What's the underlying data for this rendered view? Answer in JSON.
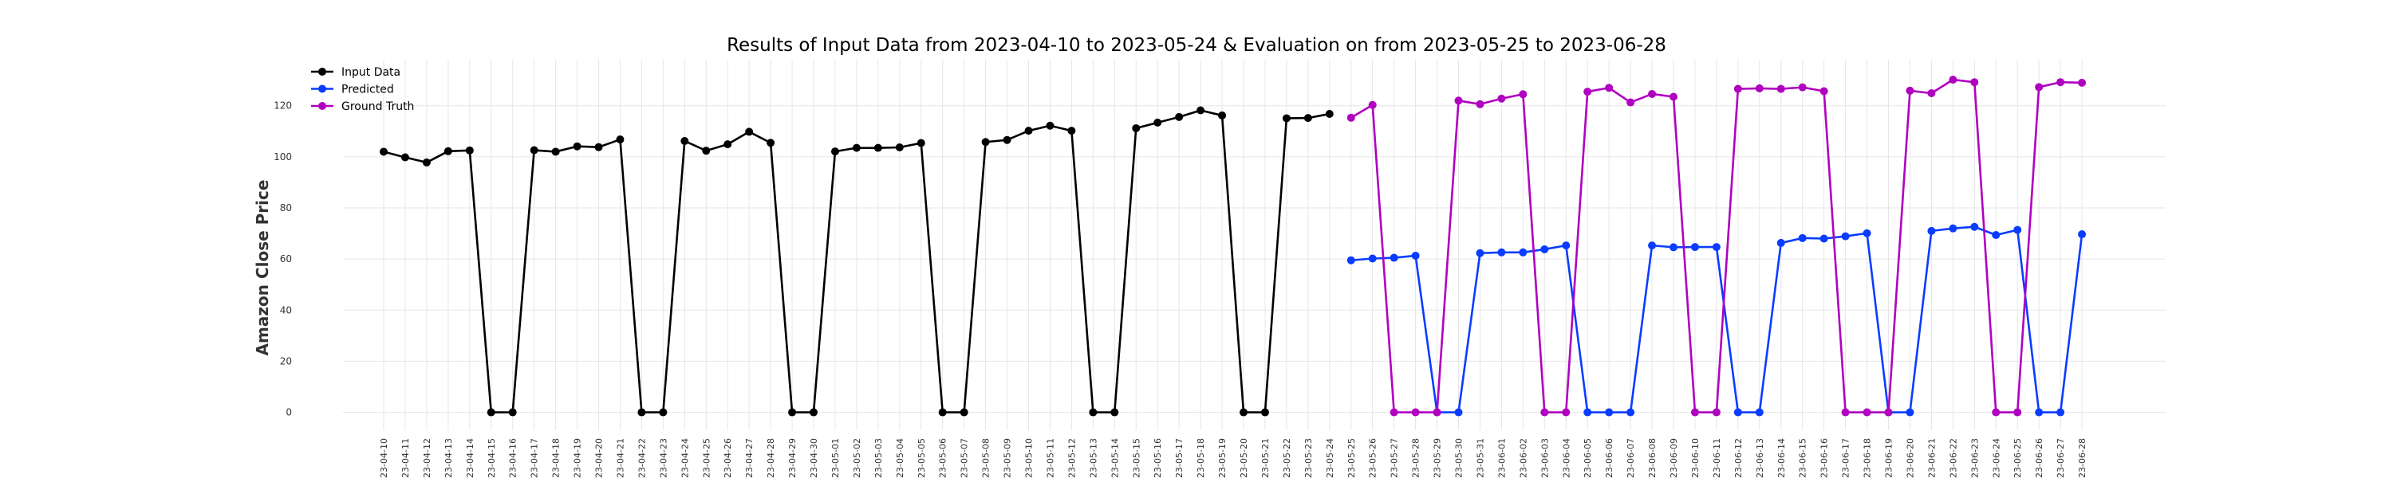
{
  "chart_data": {
    "type": "line",
    "title": "Results of Input Data from 2023-04-10 to 2023-05-24 & Evaluation on from 2023-05-25 to 2023-06-28",
    "xlabel": "",
    "ylabel": "Amazon Close Price",
    "ylim": [
      -7,
      138
    ],
    "yticks": [
      0,
      20,
      40,
      60,
      80,
      100,
      120
    ],
    "grid": true,
    "legend_position": "top-left",
    "x": [
      "2023-04-10",
      "2023-04-11",
      "2023-04-12",
      "2023-04-13",
      "2023-04-14",
      "2023-04-15",
      "2023-04-16",
      "2023-04-17",
      "2023-04-18",
      "2023-04-19",
      "2023-04-20",
      "2023-04-21",
      "2023-04-22",
      "2023-04-23",
      "2023-04-24",
      "2023-04-25",
      "2023-04-26",
      "2023-04-27",
      "2023-04-28",
      "2023-04-29",
      "2023-04-30",
      "2023-05-01",
      "2023-05-02",
      "2023-05-03",
      "2023-05-04",
      "2023-05-05",
      "2023-05-06",
      "2023-05-07",
      "2023-05-08",
      "2023-05-09",
      "2023-05-10",
      "2023-05-11",
      "2023-05-12",
      "2023-05-13",
      "2023-05-14",
      "2023-05-15",
      "2023-05-16",
      "2023-05-17",
      "2023-05-18",
      "2023-05-19",
      "2023-05-20",
      "2023-05-21",
      "2023-05-22",
      "2023-05-23",
      "2023-05-24",
      "2023-05-25",
      "2023-05-26",
      "2023-05-27",
      "2023-05-28",
      "2023-05-29",
      "2023-05-30",
      "2023-05-31",
      "2023-06-01",
      "2023-06-02",
      "2023-06-03",
      "2023-06-04",
      "2023-06-05",
      "2023-06-06",
      "2023-06-07",
      "2023-06-08",
      "2023-06-09",
      "2023-06-10",
      "2023-06-11",
      "2023-06-12",
      "2023-06-13",
      "2023-06-14",
      "2023-06-15",
      "2023-06-16",
      "2023-06-17",
      "2023-06-18",
      "2023-06-19",
      "2023-06-20",
      "2023-06-21",
      "2023-06-22",
      "2023-06-23",
      "2023-06-24",
      "2023-06-25",
      "2023-06-26",
      "2023-06-27",
      "2023-06-28"
    ],
    "tick_labels": [
      "23-04-10",
      "23-04-11",
      "23-04-12",
      "23-04-13",
      "23-04-14",
      "23-04-15",
      "23-04-16",
      "23-04-17",
      "23-04-18",
      "23-04-19",
      "23-04-20",
      "23-04-21",
      "23-04-22",
      "23-04-23",
      "23-04-24",
      "23-04-25",
      "23-04-26",
      "23-04-27",
      "23-04-28",
      "23-04-29",
      "23-04-30",
      "23-05-01",
      "23-05-02",
      "23-05-03",
      "23-05-04",
      "23-05-05",
      "23-05-06",
      "23-05-07",
      "23-05-08",
      "23-05-09",
      "23-05-10",
      "23-05-11",
      "23-05-12",
      "23-05-13",
      "23-05-14",
      "23-05-15",
      "23-05-16",
      "23-05-17",
      "23-05-18",
      "23-05-19",
      "23-05-20",
      "23-05-21",
      "23-05-22",
      "23-05-23",
      "23-05-24",
      "23-05-25",
      "23-05-26",
      "23-05-27",
      "23-05-28",
      "23-05-29",
      "23-05-30",
      "23-05-31",
      "23-06-01",
      "23-06-02",
      "23-06-03",
      "23-06-04",
      "23-06-05",
      "23-06-06",
      "23-06-07",
      "23-06-08",
      "23-06-09",
      "23-06-10",
      "23-06-11",
      "23-06-12",
      "23-06-13",
      "23-06-14",
      "23-06-15",
      "23-06-16",
      "23-06-17",
      "23-06-18",
      "23-06-19",
      "23-06-20",
      "23-06-21",
      "23-06-22",
      "23-06-23",
      "23-06-24",
      "23-06-25",
      "23-06-26",
      "23-06-27",
      "23-06-28"
    ],
    "series": [
      {
        "name": "Input Data",
        "color": "#000000",
        "x": [
          "2023-04-10",
          "2023-04-11",
          "2023-04-12",
          "2023-04-13",
          "2023-04-14",
          "2023-04-15",
          "2023-04-16",
          "2023-04-17",
          "2023-04-18",
          "2023-04-19",
          "2023-04-20",
          "2023-04-21",
          "2023-04-22",
          "2023-04-23",
          "2023-04-24",
          "2023-04-25",
          "2023-04-26",
          "2023-04-27",
          "2023-04-28",
          "2023-04-29",
          "2023-04-30",
          "2023-05-01",
          "2023-05-02",
          "2023-05-03",
          "2023-05-04",
          "2023-05-05",
          "2023-05-06",
          "2023-05-07",
          "2023-05-08",
          "2023-05-09",
          "2023-05-10",
          "2023-05-11",
          "2023-05-12",
          "2023-05-13",
          "2023-05-14",
          "2023-05-15",
          "2023-05-16",
          "2023-05-17",
          "2023-05-18",
          "2023-05-19",
          "2023-05-20",
          "2023-05-21",
          "2023-05-22",
          "2023-05-23",
          "2023-05-24"
        ],
        "values": [
          102,
          99.8,
          97.8,
          102.2,
          102.5,
          0,
          0,
          102.6,
          102,
          104.1,
          103.8,
          106.8,
          0,
          0,
          106.2,
          102.4,
          104.9,
          109.8,
          105.5,
          0,
          0,
          102.1,
          103.5,
          103.5,
          103.7,
          105.4,
          0,
          0,
          105.8,
          106.6,
          110.2,
          112.2,
          110.2,
          0,
          0,
          111.2,
          113.4,
          115.6,
          118.2,
          116.2,
          0,
          0,
          115.1,
          115.2,
          116.8
        ]
      },
      {
        "name": "Predicted",
        "color": "#0a3cff",
        "x": [
          "2023-05-25",
          "2023-05-26",
          "2023-05-27",
          "2023-05-28",
          "2023-05-29",
          "2023-05-30",
          "2023-05-31",
          "2023-06-01",
          "2023-06-02",
          "2023-06-03",
          "2023-06-04",
          "2023-06-05",
          "2023-06-06",
          "2023-06-07",
          "2023-06-08",
          "2023-06-09",
          "2023-06-10",
          "2023-06-11",
          "2023-06-12",
          "2023-06-13",
          "2023-06-14",
          "2023-06-15",
          "2023-06-16",
          "2023-06-17",
          "2023-06-18",
          "2023-06-19",
          "2023-06-20",
          "2023-06-21",
          "2023-06-22",
          "2023-06-23",
          "2023-06-24",
          "2023-06-25",
          "2023-06-26",
          "2023-06-27",
          "2023-06-28"
        ],
        "values": [
          59.5,
          60.2,
          60.5,
          61.3,
          0,
          0,
          62.3,
          62.6,
          62.6,
          63.8,
          65.3,
          0,
          0,
          0,
          65.3,
          64.6,
          64.7,
          64.7,
          0,
          0,
          66.3,
          68.2,
          68,
          68.9,
          70.1,
          0,
          0,
          71,
          72,
          72.6,
          69.4,
          71.4,
          0,
          0,
          69.7
        ]
      },
      {
        "name": "Ground Truth",
        "color": "#b000c0",
        "x": [
          "2023-05-25",
          "2023-05-26",
          "2023-05-27",
          "2023-05-28",
          "2023-05-29",
          "2023-05-30",
          "2023-05-31",
          "2023-06-01",
          "2023-06-02",
          "2023-06-03",
          "2023-06-04",
          "2023-06-05",
          "2023-06-06",
          "2023-06-07",
          "2023-06-08",
          "2023-06-09",
          "2023-06-10",
          "2023-06-11",
          "2023-06-12",
          "2023-06-13",
          "2023-06-14",
          "2023-06-15",
          "2023-06-16",
          "2023-06-17",
          "2023-06-18",
          "2023-06-19",
          "2023-06-20",
          "2023-06-21",
          "2023-06-22",
          "2023-06-23",
          "2023-06-24",
          "2023-06-25",
          "2023-06-26",
          "2023-06-27",
          "2023-06-28"
        ],
        "values": [
          115.3,
          120.3,
          0,
          0,
          0,
          122,
          120.6,
          122.8,
          124.5,
          0,
          0,
          125.5,
          127,
          121.3,
          124.6,
          123.5,
          0,
          0,
          126.6,
          126.8,
          126.6,
          127.2,
          125.7,
          0,
          0,
          0,
          125.9,
          124.9,
          130.2,
          129.2,
          0,
          0,
          127.3,
          129.2,
          129
        ]
      }
    ]
  }
}
